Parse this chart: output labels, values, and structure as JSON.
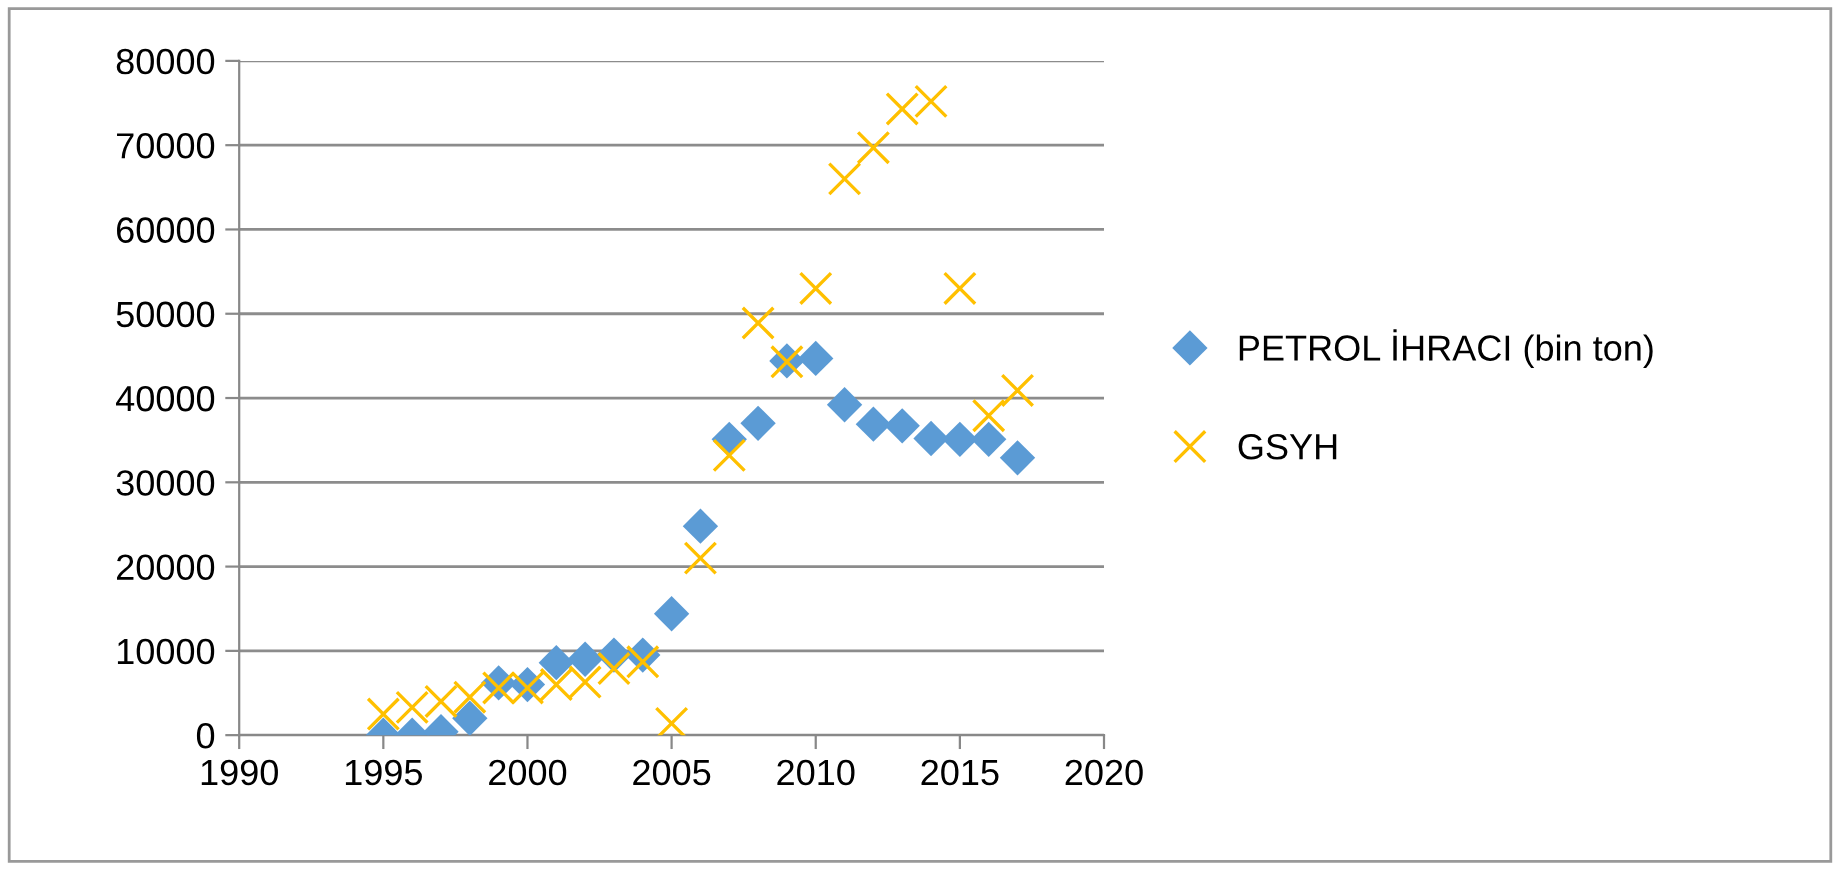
{
  "chart_data": {
    "type": "scatter",
    "x": [
      1995,
      1996,
      1997,
      1998,
      1999,
      2000,
      2001,
      2002,
      2003,
      2004,
      2005,
      2006,
      2007,
      2008,
      2009,
      2010,
      2011,
      2012,
      2013,
      2014,
      2015,
      2016,
      2017
    ],
    "series": [
      {
        "name": "PETROL İHRACI (bin ton)",
        "color": "#5b9bd5",
        "marker": "diamond",
        "values": [
          0,
          0,
          400,
          2000,
          6200,
          6000,
          8600,
          9000,
          9500,
          9500,
          14400,
          24800,
          35100,
          37000,
          44400,
          44700,
          39200,
          36900,
          36700,
          35200,
          35100,
          35100,
          32900
        ]
      },
      {
        "name": "GSYH",
        "color": "#ffc000",
        "marker": "cross",
        "values": [
          2500,
          3300,
          4000,
          4500,
          5600,
          5600,
          6000,
          6300,
          7900,
          8700,
          1400,
          21000,
          33200,
          48900,
          44300,
          53000,
          66000,
          69700,
          74300,
          75200,
          53000,
          37900,
          40900
        ]
      }
    ],
    "xlim": [
      1990,
      2020
    ],
    "xticks": [
      1990,
      1995,
      2000,
      2005,
      2010,
      2015,
      2020
    ],
    "ylim": [
      0,
      80000
    ],
    "yticks": [
      0,
      10000,
      20000,
      30000,
      40000,
      50000,
      60000,
      70000,
      80000
    ],
    "grid": "y",
    "legend": "right"
  }
}
